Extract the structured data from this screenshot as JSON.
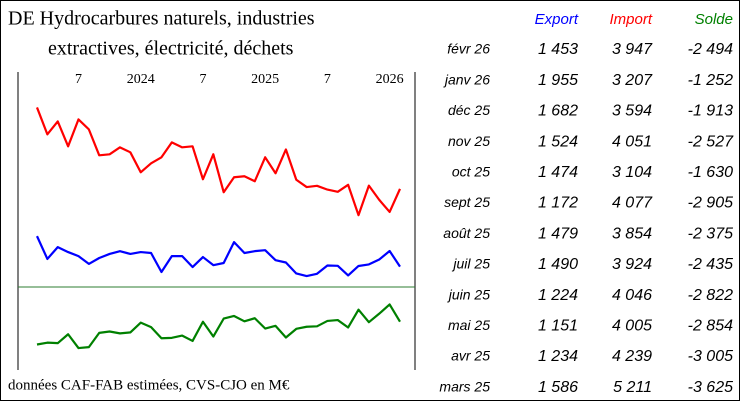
{
  "chart_data": {
    "type": "line",
    "title": [
      "DE Hydrocarbures naturels, industries",
      "extractives, électricité, déchets"
    ],
    "footnote": "données CAF-FAB estimées, CVS-CJO en M€",
    "xlim": [
      0,
      35
    ],
    "xticks": [
      {
        "value": 4,
        "label": "7"
      },
      {
        "value": 10,
        "label": "2024"
      },
      {
        "value": 16,
        "label": "7"
      },
      {
        "value": 22,
        "label": "2025"
      },
      {
        "value": 28,
        "label": "7"
      },
      {
        "value": 34,
        "label": "2026"
      }
    ],
    "ylim": [
      800,
      7600
    ],
    "y2lim": [
      -5600,
      0
    ],
    "series": [
      {
        "name": "Export",
        "color": "#0000ff",
        "values": [
          2432,
          1700,
          2080,
          1920,
          1790,
          1540,
          1730,
          1860,
          1950,
          1860,
          1920,
          1890,
          1280,
          1790,
          1790,
          1440,
          1760,
          1500,
          1570,
          2240,
          1890,
          1950,
          1980,
          1660,
          1586,
          1234,
          1151,
          1224,
          1490,
          1479,
          1172,
          1474,
          1524,
          1682,
          1955,
          1453
        ]
      },
      {
        "name": "Import",
        "color": "#ff0000",
        "values": [
          6560,
          5696,
          6112,
          5312,
          6176,
          5856,
          5024,
          5056,
          5280,
          5120,
          4480,
          4768,
          4960,
          5440,
          5280,
          5312,
          4256,
          5056,
          3840,
          4320,
          4352,
          4192,
          4960,
          4448,
          5211,
          4239,
          4005,
          4046,
          3924,
          3854,
          4077,
          3104,
          4051,
          3594,
          3207,
          3947
        ]
      },
      {
        "name": "Solde",
        "color": "#008000",
        "axis": "y2",
        "values": [
          -4128,
          -3996,
          -4032,
          -3392,
          -4386,
          -4316,
          -3294,
          -3196,
          -3330,
          -3260,
          -2560,
          -2878,
          -3680,
          -3650,
          -3490,
          -3872,
          -2496,
          -3556,
          -2270,
          -2080,
          -2462,
          -2242,
          -2980,
          -2788,
          -3625,
          -3005,
          -2854,
          -2822,
          -2435,
          -2375,
          -2905,
          -1630,
          -2527,
          -1913,
          -1252,
          -2494
        ]
      }
    ],
    "table": {
      "rows": [
        [
          "févr 26",
          "1 453",
          "3 947",
          "-2 494"
        ],
        [
          "janv 26",
          "1 955",
          "3 207",
          "-1 252"
        ],
        [
          "déc 25",
          "1 682",
          "3 594",
          "-1 913"
        ],
        [
          "nov 25",
          "1 524",
          "4 051",
          "-2 527"
        ],
        [
          "oct 25",
          "1 474",
          "3 104",
          "-1 630"
        ],
        [
          "sept 25",
          "1 172",
          "4 077",
          "-2 905"
        ],
        [
          "août 25",
          "1 479",
          "3 854",
          "-2 375"
        ],
        [
          "juil 25",
          "1 490",
          "3 924",
          "-2 435"
        ],
        [
          "juin 25",
          "1 224",
          "4 046",
          "-2 822"
        ],
        [
          "mai 25",
          "1 151",
          "4 005",
          "-2 854"
        ],
        [
          "avr 25",
          "1 234",
          "4 239",
          "-3 005"
        ],
        [
          "mars 25",
          "1 586",
          "5 211",
          "-3 625"
        ]
      ]
    }
  }
}
